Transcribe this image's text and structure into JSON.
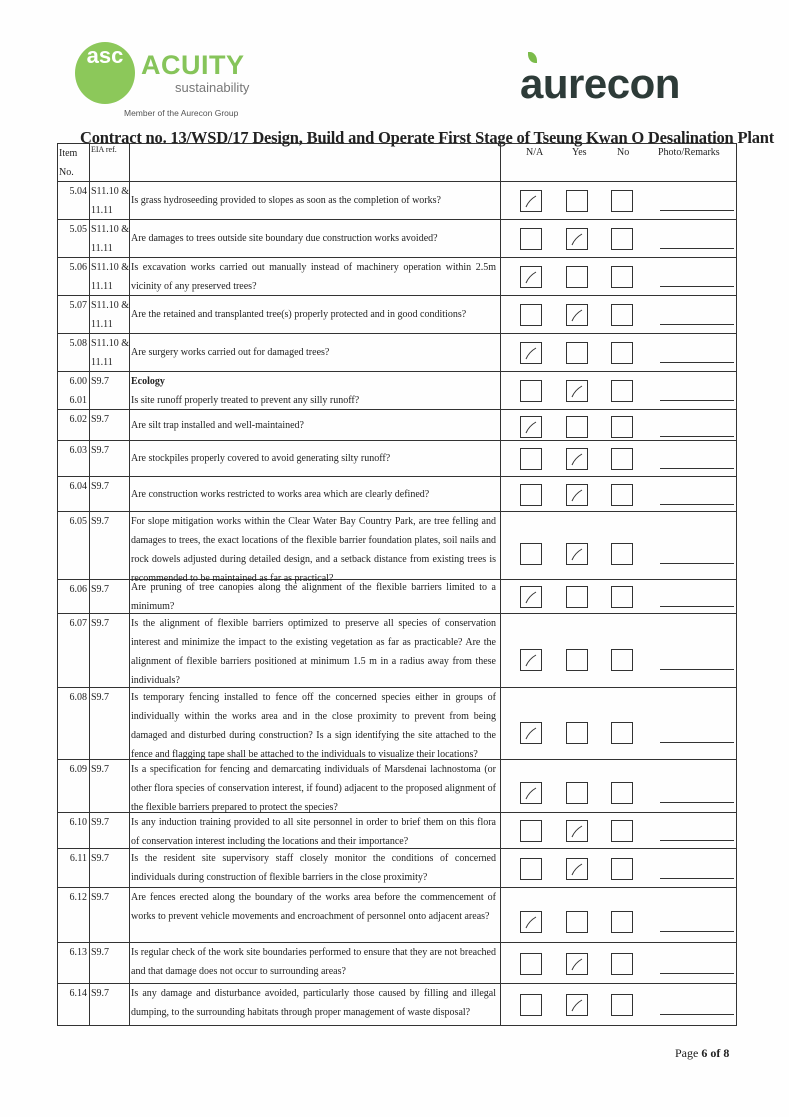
{
  "header": {
    "acuity_logo": {
      "mark": "asc",
      "name": "ACUITY",
      "tagline": "sustainability",
      "member": "Member of the Aurecon Group"
    },
    "aurecon_logo": "aurecon"
  },
  "title": "Contract no.  13/WSD/17 Design, Build and Operate First Stage of Tseung Kwan O Desalination Plant",
  "columns": {
    "item": "Item No.",
    "eia": "EIA ref.",
    "na": "N/A",
    "yes": "Yes",
    "no": "No",
    "remarks": "Photo/Remarks"
  },
  "rows": [
    {
      "item": "5.04",
      "ref": "S11.10 & 11.11",
      "question": "Is grass hydroseeding provided to slopes as soon as the completion of works?",
      "checked": "N/A"
    },
    {
      "item": "5.05",
      "ref": "S11.10 & 11.11",
      "question": "Are damages to trees outside site boundary due construction works avoided?",
      "checked": "Yes"
    },
    {
      "item": "5.06",
      "ref": "S11.10 & 11.11",
      "question": "Is excavation works carried out manually instead of machinery operation within 2.5m vicinity of any preserved trees?",
      "checked": "N/A"
    },
    {
      "item": "5.07",
      "ref": "S11.10 & 11.11",
      "question": "Are the retained and transplanted tree(s) properly protected and in good conditions?",
      "checked": "Yes"
    },
    {
      "item": "5.08",
      "ref": "S11.10 & 11.11",
      "question": "Are surgery works carried out for damaged trees?",
      "checked": "N/A"
    },
    {
      "item": "6.00 6.01",
      "ref": "S9.7",
      "heading": "Ecology",
      "question": "Is site runoff properly treated to prevent any silly runoff?",
      "checked": "Yes"
    },
    {
      "item": "6.02",
      "ref": "S9.7",
      "question": "Are silt trap installed and well-maintained?",
      "checked": "N/A"
    },
    {
      "item": "6.03",
      "ref": "S9.7",
      "question": "Are stockpiles properly covered to avoid generating silty runoff?",
      "checked": "Yes"
    },
    {
      "item": "6.04",
      "ref": "S9.7",
      "question": "Are construction works restricted to works area which are clearly defined?",
      "checked": "Yes"
    },
    {
      "item": "6.05",
      "ref": "S9.7",
      "question": "For slope mitigation works within the Clear Water Bay Country Park, are tree felling and damages to trees, the exact locations of the flexible barrier foundation plates, soil nails and rock dowels adjusted during detailed design, and a setback distance from existing trees is recommended to be maintained as far as practical?",
      "checked": "Yes"
    },
    {
      "item": "6.06",
      "ref": "S9.7",
      "question": "Are pruning of tree canopies along the alignment of the flexible barriers limited to a minimum?",
      "checked": "N/A"
    },
    {
      "item": "6.07",
      "ref": "S9.7",
      "question": "Is the alignment of flexible barriers optimized to preserve all species of conservation interest and minimize the impact to the existing vegetation as far as practicable? Are the alignment of flexible barriers positioned at minimum 1.5 m in a radius away from these individuals?",
      "checked": "N/A"
    },
    {
      "item": "6.08",
      "ref": "S9.7",
      "question": "Is temporary fencing installed to fence off the concerned species either in groups of individually within the works area and in the close proximity to prevent from being damaged and disturbed during construction? Is a sign identifying the site attached to the fence and flagging tape shall be attached to the individuals to visualize their locations?",
      "checked": "N/A"
    },
    {
      "item": "6.09",
      "ref": "S9.7",
      "question": "Is a specification for fencing and demarcating individuals of Marsdenai lachnostoma (or other flora species of conservation interest, if found) adjacent to the proposed alignment of the flexible barriers prepared to protect the species?",
      "checked": "N/A"
    },
    {
      "item": "6.10",
      "ref": "S9.7",
      "question": "Is any induction training provided to all site personnel in order to brief them on this flora of conservation interest including the locations and their importance?",
      "checked": "Yes"
    },
    {
      "item": "6.11",
      "ref": "S9.7",
      "question": "Is the resident site supervisory staff closely monitor the conditions of concerned individuals during construction of flexible barriers in the close proximity?",
      "checked": "Yes"
    },
    {
      "item": "6.12",
      "ref": "S9.7",
      "question": "Are fences erected along the boundary of the works area before the commencement of works to prevent vehicle movements and encroachment of personnel onto adjacent areas?",
      "checked": "N/A"
    },
    {
      "item": "6.13",
      "ref": "S9.7",
      "question": "Is regular check of the work site boundaries performed to ensure that they are not breached and that damage does not occur to surrounding areas?",
      "checked": "Yes"
    },
    {
      "item": "6.14",
      "ref": "S9.7",
      "question": "Is any damage and disturbance avoided, particularly those caused by filling and illegal dumping, to the surrounding habitats through proper management of waste disposal?",
      "checked": "Yes"
    }
  ],
  "footer": {
    "page_label": "Page",
    "page": "6",
    "of": "of",
    "total": "8"
  }
}
